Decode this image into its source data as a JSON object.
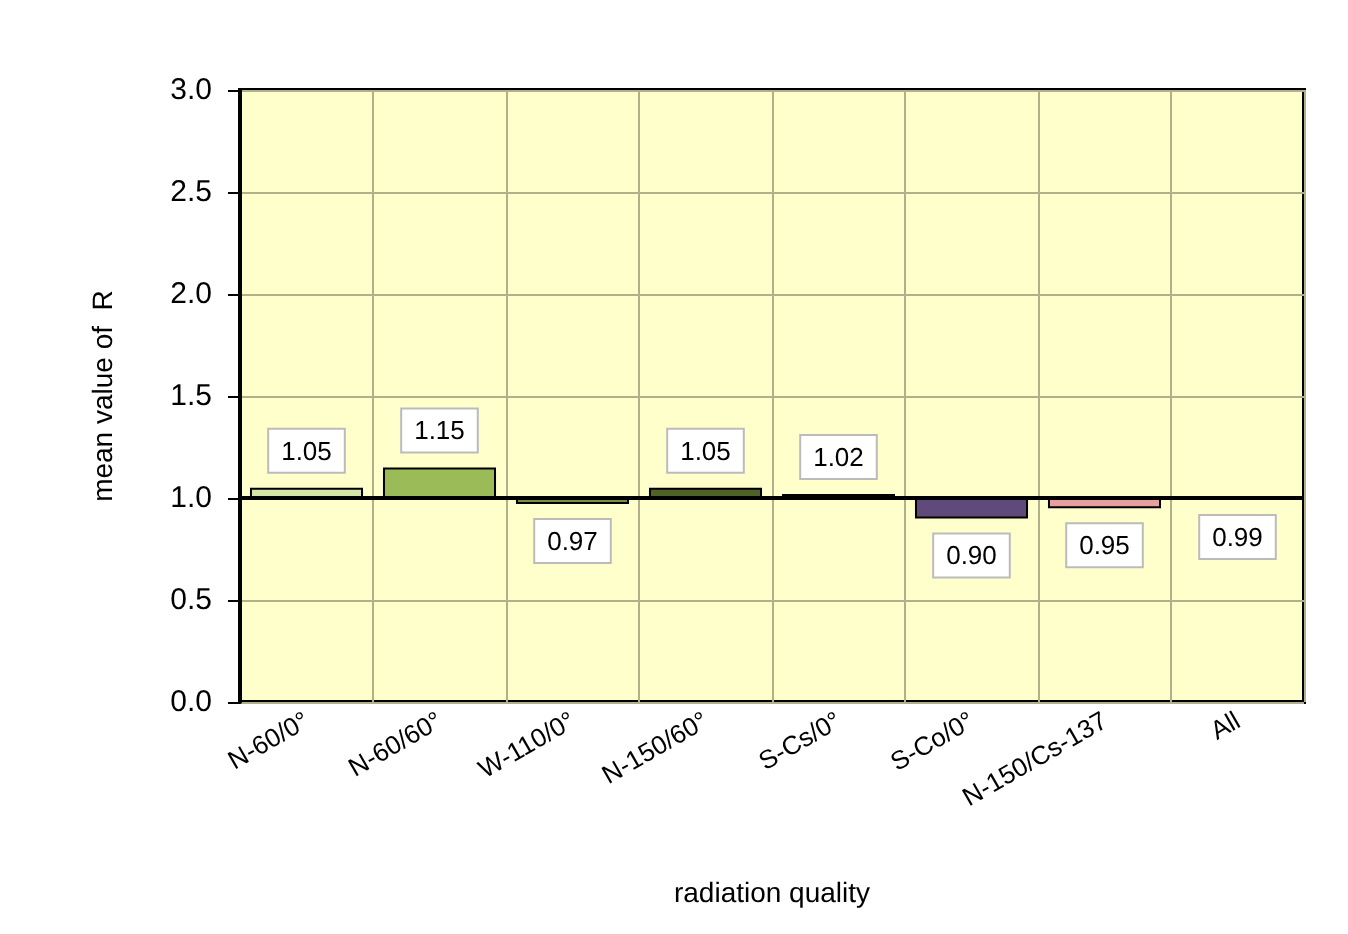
{
  "chart_data": {
    "type": "bar",
    "xlabel": "radiation quality",
    "ylabel": "mean value of  R",
    "categories": [
      "N-60/0°",
      "N-60/60°",
      "W-110/0°",
      "N-150/60°",
      "S-Cs/0°",
      "S-Co/0°",
      "N-150/Cs-137",
      "All"
    ],
    "base": [
      1,
      1,
      1,
      1,
      1,
      1,
      1,
      1
    ],
    "values": [
      0.05,
      0.15,
      -0.03,
      0.05,
      0.02,
      -0.1,
      -0.05,
      -0.01
    ],
    "value_labels": [
      "1.05",
      "1.15",
      "0.97",
      "1.05",
      "1.02",
      "0.90",
      "0.95",
      "0.99"
    ],
    "colors": [
      "#d7e4a8",
      "#9bbb59",
      "#76923c",
      "#4f6228",
      "#4a452a",
      "#604a7b",
      "#e6a0a0",
      "#333333"
    ],
    "ylim": [
      0,
      3
    ],
    "yticks": [
      {
        "value": 0,
        "label": "0.0"
      },
      0.5,
      {
        "value": 1,
        "label": "1.0"
      },
      1.5,
      {
        "value": 2,
        "label": "2.0"
      },
      2.5,
      {
        "value": 3,
        "label": "3.0"
      }
    ],
    "ref_lines": [
      {
        "axis": "y",
        "value": 1,
        "color": "#000000"
      }
    ],
    "grid": true
  }
}
